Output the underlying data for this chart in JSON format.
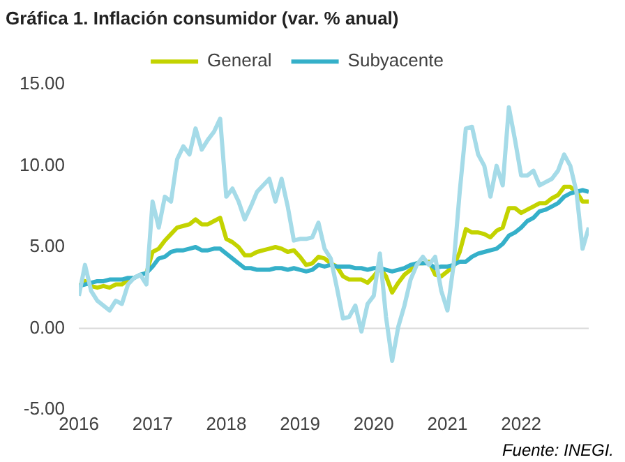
{
  "chart_data": {
    "type": "line",
    "title": "Gráfica 1. Inflación consumidor (var. % anual)",
    "annotations": [
      "Fuente: INEGI."
    ],
    "x": [
      "2016-01",
      "2016-02",
      "2016-03",
      "2016-04",
      "2016-05",
      "2016-06",
      "2016-07",
      "2016-08",
      "2016-09",
      "2016-10",
      "2016-11",
      "2016-12",
      "2017-01",
      "2017-02",
      "2017-03",
      "2017-04",
      "2017-05",
      "2017-06",
      "2017-07",
      "2017-08",
      "2017-09",
      "2017-10",
      "2017-11",
      "2017-12",
      "2018-01",
      "2018-02",
      "2018-03",
      "2018-04",
      "2018-05",
      "2018-06",
      "2018-07",
      "2018-08",
      "2018-09",
      "2018-10",
      "2018-11",
      "2018-12",
      "2019-01",
      "2019-02",
      "2019-03",
      "2019-04",
      "2019-05",
      "2019-06",
      "2019-07",
      "2019-08",
      "2019-09",
      "2019-10",
      "2019-11",
      "2019-12",
      "2020-01",
      "2020-02",
      "2020-03",
      "2020-04",
      "2020-05",
      "2020-06",
      "2020-07",
      "2020-08",
      "2020-09",
      "2020-10",
      "2020-11",
      "2020-12",
      "2021-01",
      "2021-02",
      "2021-03",
      "2021-04",
      "2021-05",
      "2021-06",
      "2021-07",
      "2021-08",
      "2021-09",
      "2021-10",
      "2021-11",
      "2021-12",
      "2022-01",
      "2022-02",
      "2022-03",
      "2022-04",
      "2022-05",
      "2022-06",
      "2022-07",
      "2022-08",
      "2022-09",
      "2022-10",
      "2022-11",
      "2022-12"
    ],
    "series": [
      {
        "name": "General",
        "color": "#c3d300",
        "values": [
          2.6,
          2.9,
          2.6,
          2.5,
          2.6,
          2.5,
          2.7,
          2.7,
          3.0,
          3.1,
          null,
          3.4,
          4.7,
          4.9,
          5.4,
          5.8,
          6.2,
          6.3,
          6.4,
          6.7,
          6.4,
          6.4,
          6.6,
          6.8,
          5.5,
          5.3,
          5.0,
          4.5,
          4.5,
          4.7,
          4.8,
          4.9,
          5.0,
          4.9,
          4.7,
          4.8,
          4.4,
          3.9,
          4.0,
          4.4,
          4.3,
          4.0,
          3.8,
          3.2,
          3.0,
          3.0,
          3.0,
          2.8,
          3.2,
          3.7,
          3.2,
          2.2,
          2.8,
          3.3,
          3.6,
          4.0,
          4.0,
          4.1,
          3.3,
          3.2,
          3.5,
          3.8,
          4.7,
          6.1,
          5.9,
          5.9,
          5.8,
          5.6,
          6.0,
          6.2,
          7.4,
          7.4,
          7.1,
          7.3,
          7.5,
          7.7,
          7.7,
          8.0,
          8.2,
          8.7,
          8.7,
          8.4,
          7.8,
          7.8
        ]
      },
      {
        "name": "Subyacente",
        "color": "#35b0c9",
        "values": [
          2.6,
          2.7,
          2.8,
          2.9,
          2.9,
          3.0,
          3.0,
          3.0,
          3.1,
          3.1,
          3.3,
          3.4,
          3.8,
          4.3,
          4.4,
          4.7,
          4.8,
          4.8,
          4.9,
          5.0,
          4.8,
          4.8,
          4.9,
          4.9,
          4.6,
          4.3,
          4.0,
          3.7,
          3.7,
          3.6,
          3.6,
          3.6,
          3.7,
          3.7,
          3.6,
          3.7,
          3.6,
          3.5,
          3.6,
          3.9,
          3.8,
          3.9,
          3.8,
          3.8,
          3.8,
          3.7,
          3.7,
          3.6,
          3.7,
          3.7,
          3.6,
          3.5,
          3.6,
          3.7,
          3.9,
          4.0,
          4.0,
          4.0,
          3.7,
          3.8,
          3.8,
          3.9,
          4.1,
          4.1,
          4.4,
          4.6,
          4.7,
          4.8,
          4.9,
          5.2,
          5.7,
          5.9,
          6.2,
          6.6,
          6.8,
          7.2,
          7.3,
          7.5,
          7.7,
          8.1,
          8.3,
          8.4,
          8.5,
          8.4
        ]
      },
      {
        "color": "#a5dbe8",
        "values": [
          2.0,
          3.9,
          2.3,
          1.7,
          1.4,
          1.1,
          1.7,
          1.5,
          2.7,
          3.1,
          3.3,
          2.7,
          7.8,
          6.2,
          8.1,
          7.8,
          10.4,
          11.2,
          10.7,
          12.3,
          11.0,
          11.6,
          12.1,
          12.9,
          8.1,
          8.6,
          7.8,
          6.7,
          7.5,
          8.4,
          8.8,
          9.2,
          7.8,
          9.2,
          7.5,
          5.4,
          5.5,
          5.5,
          5.6,
          6.5,
          4.9,
          4.3,
          2.5,
          0.6,
          0.7,
          1.4,
          -0.2,
          1.5,
          2.0,
          4.6,
          0.7,
          -2.0,
          0.1,
          1.4,
          3.0,
          3.9,
          4.4,
          3.9,
          4.4,
          2.3,
          1.1,
          3.9,
          8.4,
          12.3,
          12.4,
          10.7,
          10.0,
          8.1,
          10.0,
          8.8,
          13.6,
          11.6,
          9.4,
          9.4,
          9.7,
          8.8,
          9.0,
          9.2,
          9.7,
          10.7,
          10.0,
          8.4,
          4.9,
          6.2
        ]
      }
    ],
    "xlim": [
      "2016-01",
      "2022-12"
    ],
    "xticks": [
      "2016",
      "2017",
      "2018",
      "2019",
      "2020",
      "2021",
      "2022"
    ],
    "ylim": [
      -5,
      15
    ],
    "yticks": [
      {
        "value": -5,
        "label": "-5.00"
      },
      {
        "value": 0,
        "label": "0.00"
      },
      {
        "value": 5,
        "label": "5.00"
      },
      {
        "value": 10,
        "label": "10.00"
      },
      {
        "value": 15,
        "label": "15.00"
      }
    ],
    "ref_lines": [
      {
        "axis": "y",
        "value": 0,
        "color": "#d9d9d9"
      }
    ],
    "grid": false,
    "legend": "top",
    "marker": "none",
    "line_style": "solid"
  }
}
